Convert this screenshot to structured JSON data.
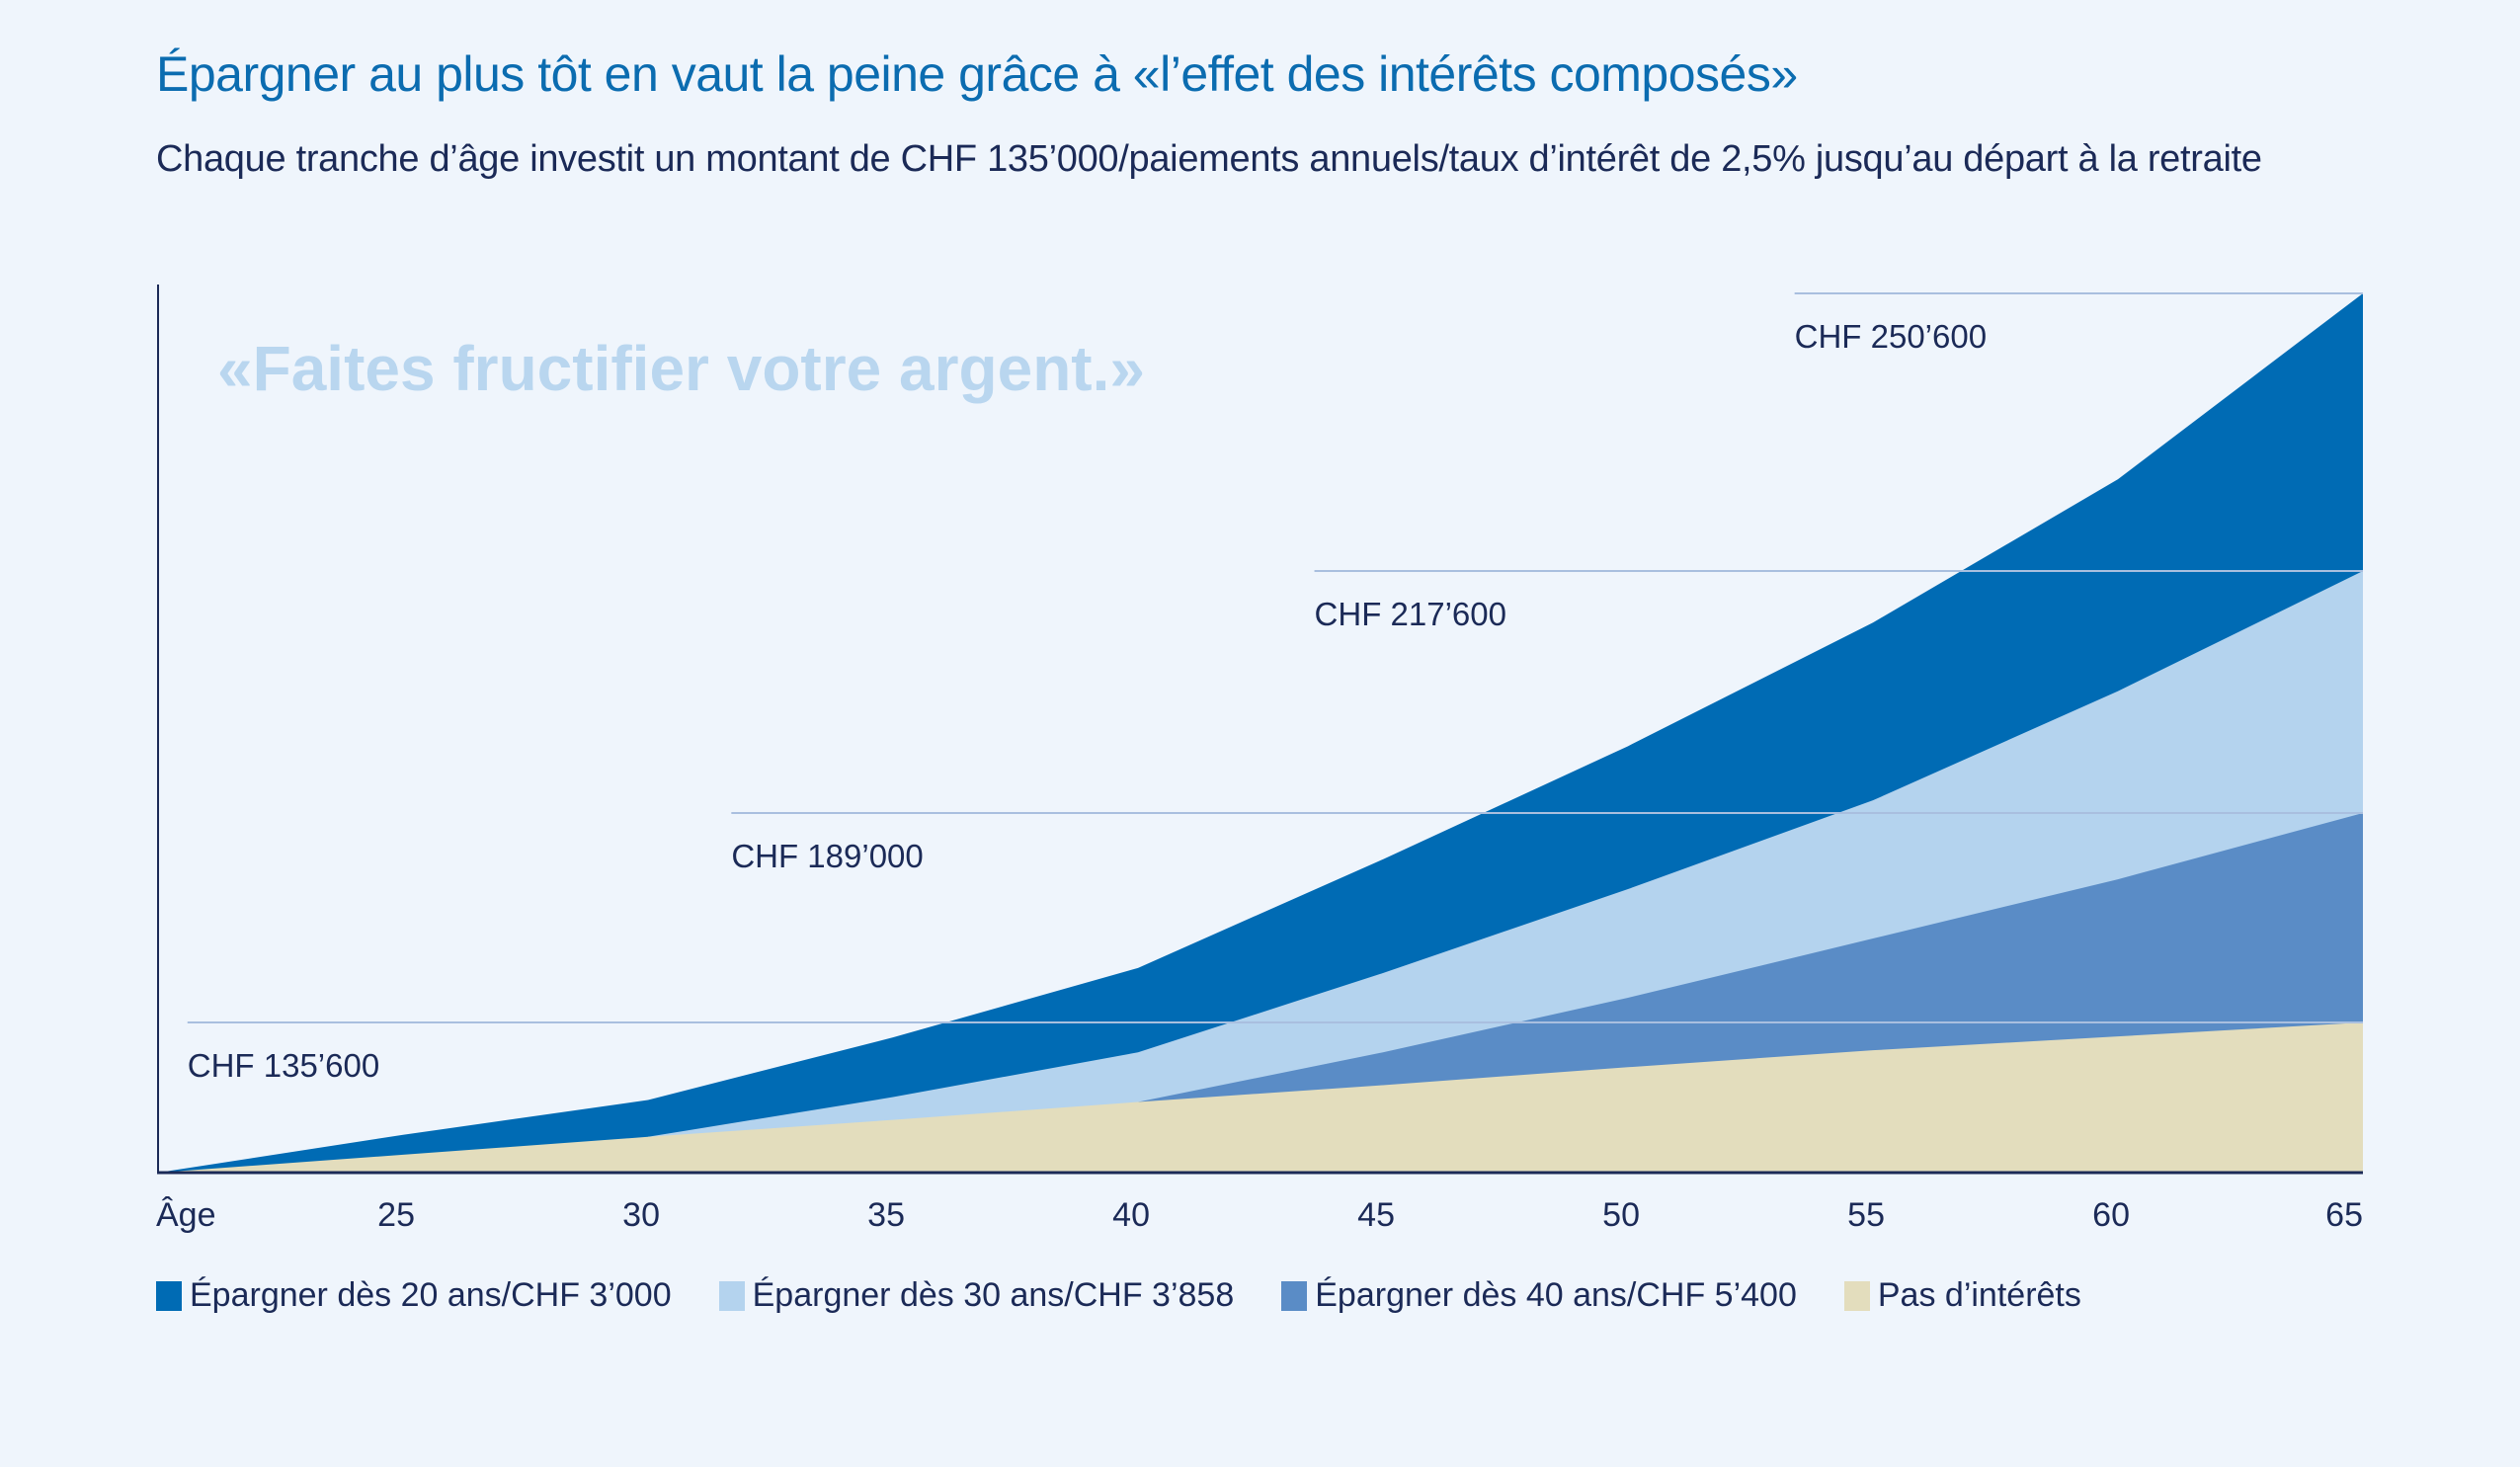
{
  "header": {
    "title": "Épargner au plus tôt en vaut la peine grâce à «l’effet des intérêts composés»",
    "subtitle": "Chaque tranche d’âge investit un montant de CHF 135’000/paiements annuels/taux d’intérêt de 2,5% jusqu’au départ à la retraite"
  },
  "colors": {
    "background": "#eff5fc",
    "title": "#0b6cb0",
    "text": "#1b2a57",
    "axis": "#1b2a57",
    "guide": "#a9bfdf",
    "slogan": "#b9d6ef"
  },
  "chart_data": {
    "type": "area",
    "title": "Épargner au plus tôt en vaut la peine grâce à «l’effet des intérêts composés»",
    "subtitle": "Chaque tranche d’âge investit un montant de CHF 135’000/paiements annuels/taux d’intérêt de 2,5% jusqu’au départ à la retraite",
    "annotation": "«Faites fructifier votre argent.»",
    "xlabel": "Âge",
    "ylabel": "",
    "x_range": [
      20,
      65
    ],
    "x_ticks": [
      25,
      30,
      35,
      40,
      45,
      50,
      55,
      60,
      65
    ],
    "grid": false,
    "legend_position": "bottom-left",
    "y_anchors": [
      0,
      135600,
      189000,
      217600,
      250600
    ],
    "guides": [
      {
        "value": 135600,
        "label": "CHF 135’600",
        "from_age": 20.6
      },
      {
        "value": 189000,
        "label": "CHF 189’000",
        "from_age": 31.7
      },
      {
        "value": 217600,
        "label": "CHF 217’600",
        "from_age": 43.6
      },
      {
        "value": 250600,
        "label": "CHF 250’600",
        "from_age": 53.4
      }
    ],
    "series": [
      {
        "name": "Épargner dès 20 ans/CHF 3’000",
        "color": "#006bb4",
        "x": [
          20,
          25,
          30,
          35,
          40,
          45,
          50,
          55,
          60,
          65
        ],
        "values": [
          0,
          34100,
          65600,
          122100,
          149500,
          177200,
          196900,
          211500,
          228500,
          250600
        ]
      },
      {
        "name": "Épargner dès 30 ans/CHF 3’858",
        "color": "#b4d3ee",
        "x": [
          30,
          35,
          40,
          45,
          50,
          55,
          60,
          65
        ],
        "values": [
          32300,
          68200,
          108600,
          148200,
          169600,
          190500,
          203400,
          217600
        ]
      },
      {
        "name": "Épargner dès 40 ans/CHF 5’400",
        "color": "#5a8cc6",
        "x": [
          40,
          45,
          50,
          55,
          60,
          65
        ],
        "values": [
          63800,
          108600,
          141900,
          157000,
          172100,
          189000
        ]
      },
      {
        "name": "Pas d’intérêts",
        "color": "#e3ddbd",
        "x": [
          20,
          25,
          30,
          35,
          40,
          45,
          50,
          55,
          60,
          65
        ],
        "values": [
          0,
          16200,
          32300,
          47600,
          63800,
          79000,
          95200,
          110500,
          123000,
          135600
        ]
      }
    ]
  }
}
